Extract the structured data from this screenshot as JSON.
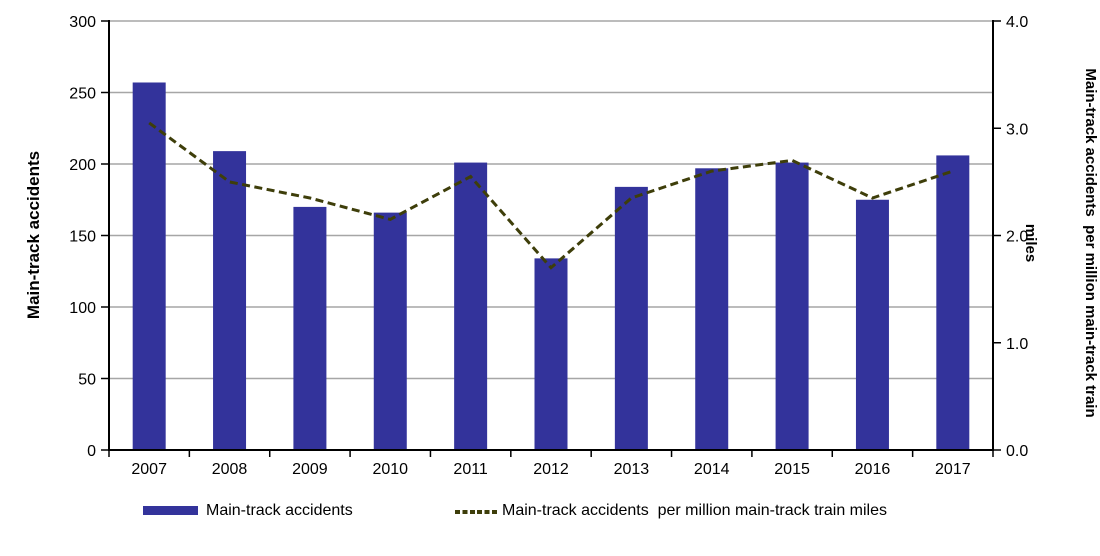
{
  "chart_data": {
    "type": "combo-bar-line",
    "categories": [
      "2007",
      "2008",
      "2009",
      "2010",
      "2011",
      "2012",
      "2013",
      "2014",
      "2015",
      "2016",
      "2017"
    ],
    "series": [
      {
        "name": "Main-track accidents",
        "type": "bar",
        "axis": "left",
        "values": [
          257,
          209,
          170,
          166,
          201,
          134,
          184,
          197,
          201,
          175,
          206
        ]
      },
      {
        "name": "Main-track accidents  per million main-track train miles",
        "type": "line",
        "style": "dashed",
        "axis": "right",
        "values": [
          3.05,
          2.5,
          2.35,
          2.15,
          2.55,
          1.7,
          2.35,
          2.6,
          2.7,
          2.35,
          2.6
        ]
      }
    ],
    "left_axis": {
      "title": "Main-track accidents",
      "min": 0,
      "max": 300,
      "tick_step": 50,
      "tick_labels": [
        "0",
        "50",
        "100",
        "150",
        "200",
        "250",
        "300"
      ]
    },
    "right_axis": {
      "title_line1": "Main-track accidents  per million main-track train",
      "title_line2": "miles",
      "min": 0,
      "max": 4,
      "tick_step": 1,
      "tick_labels": [
        "0.0",
        "1.0",
        "2.0",
        "3.0",
        "4.0"
      ]
    },
    "grid": true,
    "legend_position": "bottom"
  },
  "legend": {
    "bar_label": "Main-track accidents",
    "line_label": "Main-track accidents  per million main-track train miles"
  },
  "colors": {
    "bar": "#33339B",
    "line": "#3E3E0A",
    "grid": "#A6A6A6",
    "axis": "#000000",
    "background": "#FFFFFF"
  }
}
